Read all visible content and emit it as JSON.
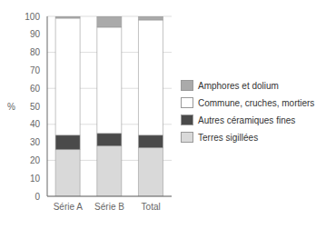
{
  "chart_data": {
    "type": "bar",
    "stacked": true,
    "categories": [
      "Série A",
      "Série B",
      "Total"
    ],
    "series": [
      {
        "name": "Terres sigillées",
        "color": "#d9d9d9",
        "values": [
          26,
          28,
          27
        ]
      },
      {
        "name": "Autres céramiques fines",
        "color": "#4a4a4a",
        "values": [
          8,
          7,
          7
        ]
      },
      {
        "name": "Commune, cruches, mortiers",
        "color": "#ffffff",
        "values": [
          65,
          59,
          64
        ]
      },
      {
        "name": "Amphores et dolium",
        "color": "#aaaaaa",
        "values": [
          1,
          6,
          2
        ]
      }
    ],
    "ylabel": "%",
    "ylim": [
      0,
      100
    ],
    "yticks": [
      0,
      10,
      20,
      30,
      40,
      50,
      60,
      70,
      80,
      90,
      100
    ],
    "grid": true,
    "legend": "right"
  }
}
